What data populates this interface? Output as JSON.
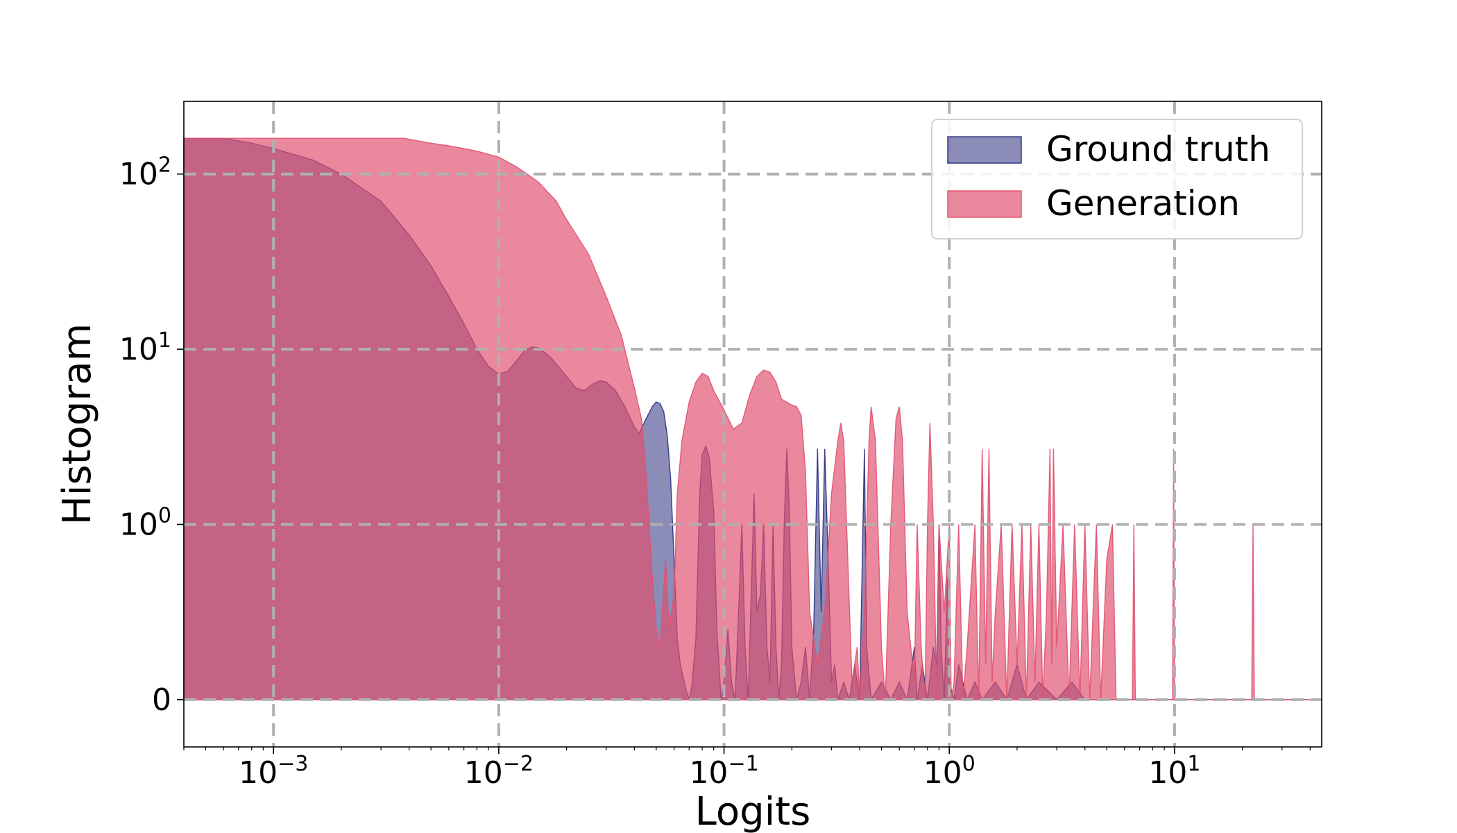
{
  "chart_data": {
    "type": "area",
    "xlabel": "Logits",
    "ylabel": "Histogram",
    "x_scale": "log",
    "y_scale": "symlog",
    "xlim": [
      0.0004,
      45
    ],
    "ylim": [
      -0.27,
      260
    ],
    "x_ticks": [
      {
        "value": 0.001,
        "base": "10",
        "exp": "−3"
      },
      {
        "value": 0.01,
        "base": "10",
        "exp": "−2"
      },
      {
        "value": 0.1,
        "base": "10",
        "exp": "−1"
      },
      {
        "value": 1,
        "base": "10",
        "exp": "0"
      },
      {
        "value": 10,
        "base": "10",
        "exp": "1"
      }
    ],
    "y_ticks": [
      {
        "value": 0,
        "label": "0",
        "base": "",
        "exp": ""
      },
      {
        "value": 1,
        "label": "",
        "base": "10",
        "exp": "0"
      },
      {
        "value": 10,
        "label": "",
        "base": "10",
        "exp": "1"
      },
      {
        "value": 100,
        "label": "",
        "base": "10",
        "exp": "2"
      }
    ],
    "grid": true,
    "legend_position": "top-right",
    "series": [
      {
        "name": "Ground truth",
        "color": "#2c2d7e",
        "fill_opacity": 0.55,
        "points": [
          [
            0.0004,
            160
          ],
          [
            0.0006,
            160
          ],
          [
            0.0008,
            150
          ],
          [
            0.001,
            140
          ],
          [
            0.0015,
            120
          ],
          [
            0.002,
            100
          ],
          [
            0.003,
            70
          ],
          [
            0.004,
            45
          ],
          [
            0.005,
            30
          ],
          [
            0.006,
            20
          ],
          [
            0.007,
            14
          ],
          [
            0.008,
            10
          ],
          [
            0.009,
            8
          ],
          [
            0.01,
            7.2
          ],
          [
            0.011,
            7.5
          ],
          [
            0.012,
            8.6
          ],
          [
            0.013,
            9.8
          ],
          [
            0.014,
            10.3
          ],
          [
            0.015,
            10.2
          ],
          [
            0.017,
            9
          ],
          [
            0.02,
            7
          ],
          [
            0.022,
            6
          ],
          [
            0.024,
            5.8
          ],
          [
            0.026,
            6.3
          ],
          [
            0.028,
            6.6
          ],
          [
            0.03,
            6.5
          ],
          [
            0.033,
            5.8
          ],
          [
            0.036,
            4.8
          ],
          [
            0.04,
            3.6
          ],
          [
            0.042,
            3.3
          ],
          [
            0.045,
            4
          ],
          [
            0.048,
            4.7
          ],
          [
            0.05,
            5
          ],
          [
            0.052,
            4.9
          ],
          [
            0.054,
            4.4
          ],
          [
            0.056,
            3.2
          ],
          [
            0.058,
            1.8
          ],
          [
            0.06,
            0.8
          ],
          [
            0.062,
            0.35
          ],
          [
            0.064,
            0.2
          ],
          [
            0.066,
            0.12
          ],
          [
            0.068,
            0.05
          ],
          [
            0.07,
            0
          ],
          [
            0.072,
            0.08
          ],
          [
            0.075,
            0.35
          ],
          [
            0.078,
            1.5
          ],
          [
            0.08,
            2.5
          ],
          [
            0.083,
            2.8
          ],
          [
            0.086,
            2.4
          ],
          [
            0.09,
            1.2
          ],
          [
            0.093,
            0.4
          ],
          [
            0.097,
            0
          ],
          [
            0.1,
            0.1
          ],
          [
            0.104,
            0.4
          ],
          [
            0.108,
            0.1
          ],
          [
            0.112,
            0
          ],
          [
            0.116,
            0.5
          ],
          [
            0.12,
            1
          ],
          [
            0.124,
            0.3
          ],
          [
            0.128,
            0
          ],
          [
            0.132,
            0.6
          ],
          [
            0.136,
            1.5
          ],
          [
            0.14,
            0.5
          ],
          [
            0.145,
            0.6
          ],
          [
            0.15,
            1
          ],
          [
            0.155,
            0.3
          ],
          [
            0.16,
            0.1
          ],
          [
            0.165,
            1
          ],
          [
            0.17,
            0.3
          ],
          [
            0.175,
            0
          ],
          [
            0.18,
            0.2
          ],
          [
            0.185,
            1
          ],
          [
            0.19,
            2.7
          ],
          [
            0.195,
            1.2
          ],
          [
            0.2,
            0.3
          ],
          [
            0.21,
            0
          ],
          [
            0.22,
            0.1
          ],
          [
            0.23,
            0.3
          ],
          [
            0.24,
            0
          ],
          [
            0.25,
            0.4
          ],
          [
            0.26,
            2.7
          ],
          [
            0.27,
            0.5
          ],
          [
            0.28,
            2.7
          ],
          [
            0.29,
            0.8
          ],
          [
            0.3,
            0.1
          ],
          [
            0.31,
            0.2
          ],
          [
            0.32,
            0
          ],
          [
            0.34,
            0.1
          ],
          [
            0.36,
            0
          ],
          [
            0.38,
            0.2
          ],
          [
            0.4,
            0
          ],
          [
            0.42,
            2.7
          ],
          [
            0.43,
            0.3
          ],
          [
            0.45,
            0
          ],
          [
            0.5,
            0.1
          ],
          [
            0.55,
            0
          ],
          [
            0.6,
            0.1
          ],
          [
            0.65,
            0
          ],
          [
            0.7,
            0.3
          ],
          [
            0.72,
            0
          ],
          [
            0.76,
            0.2
          ],
          [
            0.8,
            0
          ],
          [
            0.85,
            0.3
          ],
          [
            0.88,
            0.2
          ],
          [
            0.9,
            1
          ],
          [
            0.92,
            0.3
          ],
          [
            0.95,
            0
          ],
          [
            0.98,
            0.7
          ],
          [
            1.0,
            0.1
          ],
          [
            1.05,
            0
          ],
          [
            1.1,
            0.2
          ],
          [
            1.2,
            0
          ],
          [
            1.3,
            0.1
          ],
          [
            1.4,
            0
          ],
          [
            1.6,
            0.1
          ],
          [
            1.8,
            0
          ],
          [
            2.0,
            0.2
          ],
          [
            2.2,
            0
          ],
          [
            2.5,
            0.1
          ],
          [
            3.0,
            0
          ],
          [
            3.5,
            0.1
          ],
          [
            4.0,
            0
          ],
          [
            10,
            0
          ],
          [
            40,
            0
          ]
        ]
      },
      {
        "name": "Generation",
        "color": "#e0506e",
        "fill_opacity": 0.68,
        "points": [
          [
            0.0004,
            160
          ],
          [
            0.001,
            160
          ],
          [
            0.002,
            160
          ],
          [
            0.0038,
            160
          ],
          [
            0.005,
            150
          ],
          [
            0.006,
            145
          ],
          [
            0.007,
            140
          ],
          [
            0.008,
            135
          ],
          [
            0.01,
            125
          ],
          [
            0.012,
            110
          ],
          [
            0.015,
            90
          ],
          [
            0.018,
            70
          ],
          [
            0.02,
            55
          ],
          [
            0.025,
            35
          ],
          [
            0.03,
            20
          ],
          [
            0.035,
            12
          ],
          [
            0.04,
            6
          ],
          [
            0.043,
            4
          ],
          [
            0.045,
            2
          ],
          [
            0.048,
            0.7
          ],
          [
            0.05,
            0.4
          ],
          [
            0.052,
            0.3
          ],
          [
            0.055,
            0.8
          ],
          [
            0.057,
            0.4
          ],
          [
            0.06,
            0.6
          ],
          [
            0.062,
            1.5
          ],
          [
            0.065,
            3
          ],
          [
            0.07,
            5
          ],
          [
            0.075,
            6.5
          ],
          [
            0.08,
            7.3
          ],
          [
            0.085,
            7
          ],
          [
            0.09,
            5.8
          ],
          [
            0.1,
            4.5
          ],
          [
            0.11,
            3.5
          ],
          [
            0.12,
            3.8
          ],
          [
            0.13,
            5.5
          ],
          [
            0.14,
            7
          ],
          [
            0.15,
            7.6
          ],
          [
            0.16,
            7.4
          ],
          [
            0.17,
            6.5
          ],
          [
            0.18,
            5.2
          ],
          [
            0.2,
            4.8
          ],
          [
            0.21,
            4.7
          ],
          [
            0.22,
            4.2
          ],
          [
            0.23,
            2
          ],
          [
            0.24,
            0.5
          ],
          [
            0.26,
            0.2
          ],
          [
            0.28,
            0.5
          ],
          [
            0.3,
            1.5
          ],
          [
            0.32,
            3
          ],
          [
            0.33,
            3.8
          ],
          [
            0.34,
            3
          ],
          [
            0.35,
            1
          ],
          [
            0.37,
            0.1
          ],
          [
            0.39,
            0.3
          ],
          [
            0.4,
            0
          ],
          [
            0.42,
            0.5
          ],
          [
            0.44,
            3
          ],
          [
            0.45,
            4.7
          ],
          [
            0.47,
            3
          ],
          [
            0.5,
            0.3
          ],
          [
            0.52,
            0
          ],
          [
            0.55,
            1
          ],
          [
            0.58,
            4
          ],
          [
            0.6,
            4.7
          ],
          [
            0.62,
            3
          ],
          [
            0.65,
            0.5
          ],
          [
            0.7,
            0.1
          ],
          [
            0.72,
            1
          ],
          [
            0.75,
            0.3
          ],
          [
            0.78,
            0
          ],
          [
            0.8,
            1
          ],
          [
            0.82,
            3.8
          ],
          [
            0.85,
            1
          ],
          [
            0.88,
            0
          ],
          [
            0.9,
            1
          ],
          [
            0.95,
            0.5
          ],
          [
            1.0,
            1
          ],
          [
            1.02,
            0
          ],
          [
            1.05,
            0.1
          ],
          [
            1.1,
            1
          ],
          [
            1.15,
            0
          ],
          [
            1.2,
            0.3
          ],
          [
            1.3,
            1
          ],
          [
            1.35,
            0
          ],
          [
            1.4,
            2.7
          ],
          [
            1.45,
            0.2
          ],
          [
            1.5,
            2.7
          ],
          [
            1.55,
            0.1
          ],
          [
            1.6,
            0.5
          ],
          [
            1.7,
            1
          ],
          [
            1.8,
            0
          ],
          [
            1.9,
            1
          ],
          [
            2.0,
            0.2
          ],
          [
            2.1,
            1
          ],
          [
            2.2,
            0
          ],
          [
            2.3,
            1
          ],
          [
            2.4,
            0.1
          ],
          [
            2.5,
            1
          ],
          [
            2.6,
            0
          ],
          [
            2.7,
            0.5
          ],
          [
            2.8,
            2.7
          ],
          [
            2.85,
            0.2
          ],
          [
            2.9,
            2.7
          ],
          [
            3.0,
            0.3
          ],
          [
            3.2,
            1
          ],
          [
            3.4,
            0
          ],
          [
            3.6,
            1
          ],
          [
            3.8,
            0
          ],
          [
            4.0,
            1
          ],
          [
            4.2,
            0
          ],
          [
            4.5,
            1
          ],
          [
            4.7,
            0
          ],
          [
            5.0,
            0.8
          ],
          [
            5.3,
            1
          ],
          [
            5.5,
            0
          ],
          [
            6.5,
            0
          ],
          [
            6.6,
            1
          ],
          [
            6.7,
            0
          ],
          [
            9.8,
            0
          ],
          [
            9.9,
            2.7
          ],
          [
            10,
            0
          ],
          [
            22,
            0
          ],
          [
            22.3,
            1
          ],
          [
            22.6,
            0
          ],
          [
            40,
            0
          ]
        ]
      }
    ]
  }
}
